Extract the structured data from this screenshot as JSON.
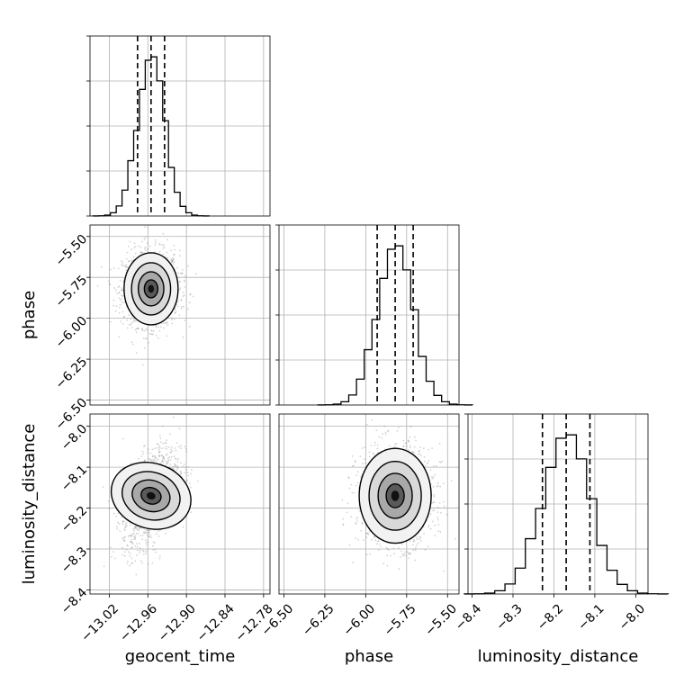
{
  "chart_data": {
    "type": "corner",
    "parameters": [
      "geocent_time",
      "phase",
      "luminosity_distance"
    ],
    "ranges": {
      "geocent_time": [
        -13.05,
        -12.77
      ],
      "phase": [
        -6.53,
        -5.43
      ],
      "luminosity_distance": [
        -8.41,
        -7.97
      ]
    },
    "ticks": {
      "geocent_time": [
        -13.02,
        -12.96,
        -12.9,
        -12.84,
        -12.78
      ],
      "phase": [
        -6.5,
        -6.25,
        -6.0,
        -5.75,
        -5.5
      ],
      "luminosity_distance": [
        -8.4,
        -8.3,
        -8.2,
        -8.1,
        -8.0
      ]
    },
    "tick_labels": {
      "geocent_time": [
        "−13.02",
        "−12.96",
        "−12.90",
        "−12.84",
        "−12.78"
      ],
      "phase": [
        "−6.50",
        "−6.25",
        "−6.00",
        "−5.75",
        "−5.50"
      ],
      "luminosity_distance": [
        "−8.4",
        "−8.3",
        "−8.2",
        "−8.1",
        "−8.0"
      ]
    },
    "phase_y_tick_labels": [
      "−6.50",
      "−6.25",
      "−6.00",
      "−5.75",
      "−5.50"
    ],
    "lumdist_y_tick_labels": [
      "−8.4",
      "−8.3",
      "−8.2",
      "−8.1",
      "−8.0"
    ],
    "means": {
      "geocent_time": -12.955,
      "phase": -5.82,
      "luminosity_distance": -8.17
    },
    "sigmas": {
      "geocent_time": 0.021,
      "phase": 0.11,
      "luminosity_distance": 0.058
    },
    "quantiles": {
      "geocent_time": [
        -12.976,
        -12.955,
        -12.934
      ],
      "phase": [
        -5.93,
        -5.82,
        -5.71
      ],
      "luminosity_distance": [
        -8.228,
        -8.17,
        -8.112
      ]
    },
    "correlations": {
      "geocent_time__phase": 0.0,
      "geocent_time__luminosity_distance": 0.45,
      "phase__luminosity_distance": 0.0
    },
    "grid": true,
    "histogram_type": "step",
    "xlabel": "geocent_time",
    "xlabel2": "phase",
    "xlabel3": "luminosity_distance",
    "ylabel_row2": "phase",
    "ylabel_row3": "luminosity_distance"
  }
}
